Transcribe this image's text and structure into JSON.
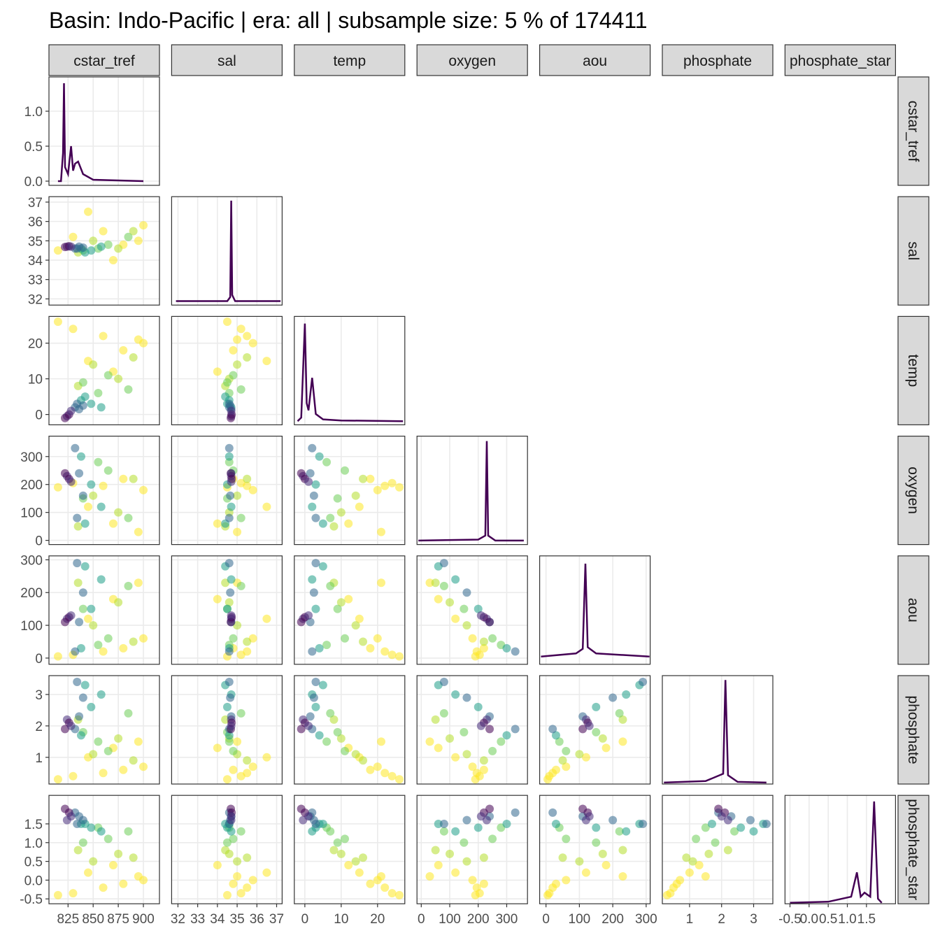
{
  "chart_data": {
    "type": "pairs",
    "title": "Basin: Indo-Pacific | era: all | subsample size: 5 % of 174411",
    "grid": true,
    "density_color": "#440154",
    "density_yticks": [
      {
        "value": 0,
        "label": "0.0"
      },
      0.5,
      {
        "value": 1,
        "label": "1.0"
      }
    ],
    "variables": [
      {
        "name": "cstar_tref",
        "lim": [
          806,
          916
        ],
        "ticks": [
          825,
          850,
          875,
          900
        ],
        "density": {
          "ylim": [
            -0.06,
            1.49
          ],
          "x": [
            815,
            818,
            820,
            821,
            822,
            825,
            828,
            830,
            832,
            835,
            840,
            850,
            900
          ],
          "y": [
            0,
            0,
            0.4,
            1.4,
            0.2,
            0.1,
            0.5,
            0.15,
            0.25,
            0.28,
            0.1,
            0.02,
            0
          ]
        }
      },
      {
        "name": "sal",
        "lim": [
          31.68,
          37.28
        ],
        "ticks": [
          32,
          33,
          34,
          35,
          36,
          37
        ],
        "density": {
          "ylim": [
            -2,
            52
          ],
          "x": [
            31.9,
            34.5,
            34.65,
            34.7,
            34.75,
            34.9,
            37.2
          ],
          "y": [
            0,
            0,
            2,
            50,
            3,
            0,
            0
          ]
        }
      },
      {
        "name": "temp",
        "lim": [
          -2.9,
          27.5
        ],
        "ticks": [
          0,
          10,
          20
        ],
        "density": {
          "ylim": [
            -0.1,
            2.9
          ],
          "x": [
            -2,
            -1,
            0,
            0.5,
            1,
            2,
            3,
            5,
            10,
            27
          ],
          "y": [
            0,
            0.1,
            2.7,
            0.5,
            0.3,
            1.2,
            0.2,
            0.05,
            0.02,
            0
          ]
        }
      },
      {
        "name": "oxygen",
        "lim": [
          -15,
          373
        ],
        "ticks": [
          0,
          100,
          200,
          300
        ],
        "density": {
          "ylim": [
            -0.4,
            10.5
          ],
          "x": [
            -10,
            200,
            225,
            230,
            235,
            260,
            360
          ],
          "y": [
            0,
            0.1,
            0.5,
            10,
            0.5,
            0,
            0
          ]
        }
      },
      {
        "name": "aou",
        "lim": [
          -19,
          312
        ],
        "ticks": [
          0,
          100,
          200,
          300
        ],
        "density": {
          "ylim": [
            -0.5,
            6.5
          ],
          "x": [
            -15,
            90,
            110,
            118,
            125,
            150,
            310
          ],
          "y": [
            0,
            0.2,
            0.5,
            6,
            0.6,
            0.2,
            0
          ]
        }
      },
      {
        "name": "phosphate",
        "lim": [
          0.15,
          3.6
        ],
        "ticks": [
          1,
          2,
          3
        ],
        "density": {
          "ylim": [
            -0.1,
            7.3
          ],
          "x": [
            0.2,
            1.5,
            2.05,
            2.12,
            2.2,
            2.5,
            3.4
          ],
          "y": [
            0,
            0.1,
            0.6,
            7,
            0.5,
            0.05,
            0
          ]
        }
      },
      {
        "name": "phosphate_star",
        "lim": [
          -0.63,
          2.26
        ],
        "ticks": [
          -0.5,
          {
            "value": 0,
            "label": "0.0"
          },
          0.5,
          {
            "value": 1,
            "label": "1.0"
          },
          1.5
        ],
        "density": {
          "ylim": [
            -0.05,
            5.3
          ],
          "x": [
            -0.5,
            0.5,
            1.1,
            1.25,
            1.35,
            1.45,
            1.6,
            1.7,
            1.8,
            1.9
          ],
          "y": [
            0,
            0.05,
            0.3,
            1.5,
            0.3,
            0.5,
            0.3,
            5,
            0.2,
            0
          ]
        }
      }
    ],
    "observations": [
      {
        "color": "#fde725",
        "values": [
          830,
          35.2,
          24,
          205,
          10,
          0.4,
          -0.35
        ]
      },
      {
        "color": "#fde725",
        "values": [
          860,
          35.5,
          22,
          195,
          20,
          0.5,
          -0.2
        ]
      },
      {
        "color": "#fde725",
        "values": [
          880,
          34.8,
          18,
          220,
          30,
          0.6,
          -0.1
        ]
      },
      {
        "color": "#fde725",
        "values": [
          900,
          35.8,
          20,
          180,
          60,
          0.7,
          0
        ]
      },
      {
        "color": "#fde725",
        "values": [
          815,
          34.5,
          26,
          190,
          5,
          0.3,
          -0.4
        ]
      },
      {
        "color": "#fde725",
        "values": [
          845,
          36.5,
          15,
          120,
          120,
          1,
          0.2
        ]
      },
      {
        "color": "#fde725",
        "values": [
          870,
          34,
          12,
          60,
          180,
          1.3,
          0.4
        ]
      },
      {
        "color": "#fde725",
        "values": [
          895,
          35,
          21,
          30,
          230,
          1.5,
          0.1
        ]
      },
      {
        "color": "#b5de2b",
        "values": [
          850,
          35,
          14,
          160,
          100,
          1.1,
          0.5
        ]
      },
      {
        "color": "#b5de2b",
        "values": [
          875,
          34.6,
          10,
          100,
          170,
          1.6,
          0.7
        ]
      },
      {
        "color": "#b5de2b",
        "values": [
          890,
          35.5,
          16,
          220,
          50,
          0.9,
          0.6
        ]
      },
      {
        "color": "#b5de2b",
        "values": [
          835,
          34.4,
          8,
          50,
          230,
          2.2,
          0.8
        ]
      },
      {
        "color": "#6ece58",
        "values": [
          840,
          34.5,
          9,
          150,
          150,
          1.8,
          1
        ]
      },
      {
        "color": "#6ece58",
        "values": [
          865,
          34.8,
          11,
          250,
          60,
          1.2,
          1.1
        ]
      },
      {
        "color": "#6ece58",
        "values": [
          885,
          35.2,
          7,
          80,
          220,
          2.4,
          1.3
        ]
      },
      {
        "color": "#6ece58",
        "values": [
          855,
          34.6,
          6,
          280,
          40,
          1.5,
          1.4
        ]
      },
      {
        "color": "#1f9e89",
        "values": [
          838,
          34.6,
          4,
          300,
          30,
          1.7,
          1.5
        ]
      },
      {
        "color": "#1f9e89",
        "values": [
          848,
          34.5,
          3,
          200,
          150,
          2.6,
          1.4
        ]
      },
      {
        "color": "#1f9e89",
        "values": [
          858,
          34.7,
          2,
          120,
          240,
          3,
          1.3
        ]
      },
      {
        "color": "#1f9e89",
        "values": [
          842,
          34.4,
          5,
          60,
          280,
          3.3,
          1.5
        ]
      },
      {
        "color": "#31688e",
        "values": [
          832,
          34.6,
          2,
          330,
          20,
          1.9,
          1.8
        ]
      },
      {
        "color": "#31688e",
        "values": [
          836,
          34.7,
          1.5,
          240,
          110,
          2.3,
          1.7
        ]
      },
      {
        "color": "#31688e",
        "values": [
          840,
          34.65,
          2.5,
          160,
          200,
          2.9,
          1.6
        ]
      },
      {
        "color": "#31688e",
        "values": [
          834,
          34.6,
          3,
          80,
          290,
          3.4,
          1.5
        ]
      },
      {
        "color": "#472d7b",
        "values": [
          824,
          34.7,
          -0.5,
          230,
          120,
          2.2,
          1.6
        ]
      },
      {
        "color": "#440154",
        "values": [
          826,
          34.72,
          0,
          220,
          125,
          2.1,
          1.8
        ]
      },
      {
        "color": "#440154",
        "values": [
          822,
          34.68,
          -1,
          240,
          110,
          1.9,
          1.9
        ]
      },
      {
        "color": "#472d7b",
        "values": [
          828,
          34.7,
          1,
          210,
          130,
          2,
          1.7
        ]
      }
    ]
  }
}
